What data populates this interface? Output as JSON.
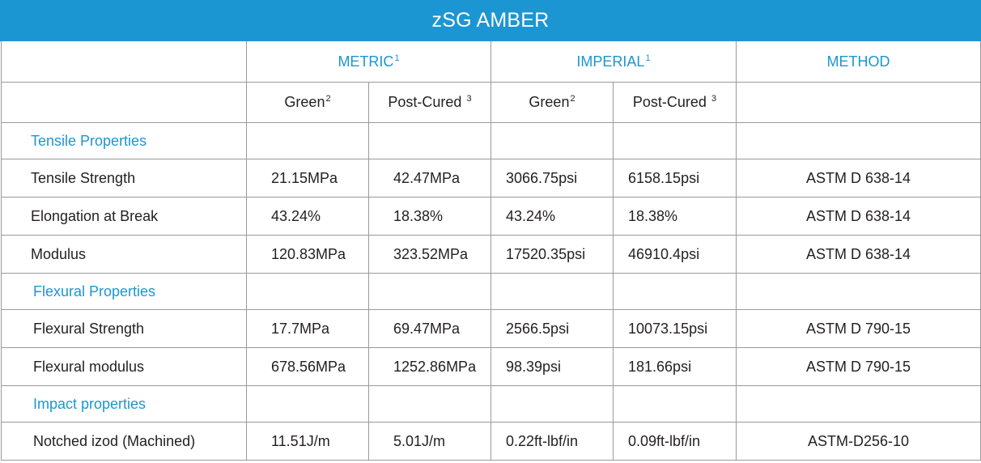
{
  "title": "zSG AMBER",
  "colors": {
    "header_bg": "#1c96d2",
    "accent_text": "#1c96d2",
    "border": "#9a9a9a"
  },
  "unit_headers": {
    "metric": "METRIC",
    "metric_sup": "1",
    "imperial": "IMPERIAL",
    "imperial_sup": "1",
    "method": "METHOD"
  },
  "sub_headers": {
    "green": "Green",
    "green_sup": "2",
    "post_cured": "Post-Cured ",
    "post_cured_sup": "3"
  },
  "sections": [
    {
      "name": "Tensile Properties",
      "rows": [
        {
          "label": "Tensile Strength",
          "metric_green": "21.15MPa",
          "metric_post": "42.47MPa",
          "imperial_green": "3066.75psi",
          "imperial_post": "6158.15psi",
          "method": "ASTM D 638-14"
        },
        {
          "label": "Elongation at Break",
          "metric_green": "43.24%",
          "metric_post": "18.38%",
          "imperial_green": "43.24%",
          "imperial_post": "18.38%",
          "method": "ASTM D 638-14"
        },
        {
          "label": "Modulus",
          "metric_green": "120.83MPa",
          "metric_post": "323.52MPa",
          "imperial_green": "17520.35psi",
          "imperial_post": "46910.4psi",
          "method": "ASTM D 638-14"
        }
      ]
    },
    {
      "name": "Flexural Properties",
      "rows": [
        {
          "label": "Flexural Strength",
          "metric_green": "17.7MPa",
          "metric_post": "69.47MPa",
          "imperial_green": "2566.5psi",
          "imperial_post": "10073.15psi",
          "method": "ASTM D 790-15"
        },
        {
          "label": "Flexural modulus",
          "metric_green": "678.56MPa",
          "metric_post": "1252.86MPa",
          "imperial_green": "98.39psi",
          "imperial_post": "181.66psi",
          "method": "ASTM D 790-15"
        }
      ]
    },
    {
      "name": "Impact properties",
      "rows": [
        {
          "label": "Notched izod (Machined)",
          "metric_green": "11.51J/m",
          "metric_post": "5.01J/m",
          "imperial_green": "0.22ft-lbf/in",
          "imperial_post": "0.09ft-lbf/in",
          "method": "ASTM-D256-10"
        }
      ]
    }
  ]
}
